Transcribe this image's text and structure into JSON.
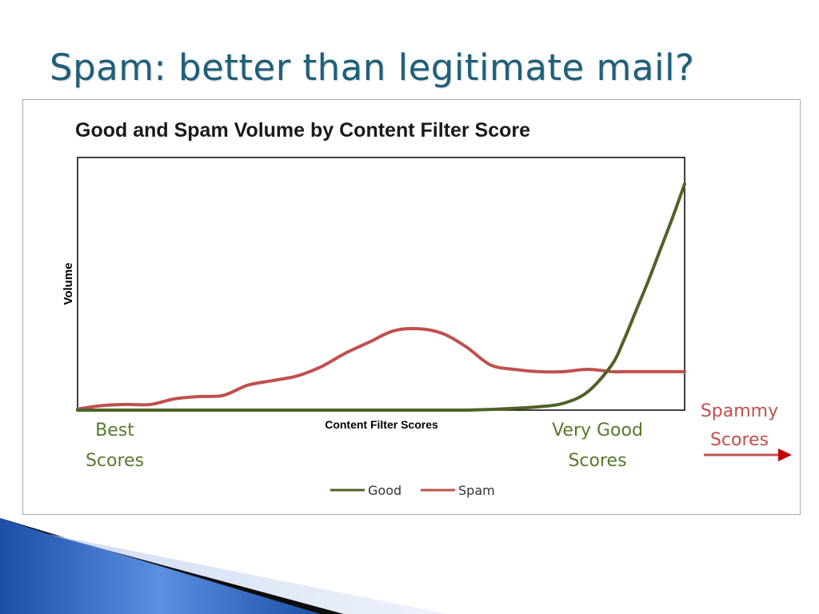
{
  "slide": {
    "title": "Spam: better than legitimate mail?"
  },
  "chart_data": {
    "type": "line",
    "title": "Good and Spam Volume by Content Filter Score",
    "xlabel": "Content Filter Scores",
    "ylabel": "Volume",
    "xlim": [
      0,
      100
    ],
    "ylim": [
      0,
      100
    ],
    "grid": false,
    "legend": "bottom",
    "x": [
      0,
      4,
      8,
      12,
      16,
      20,
      24,
      28,
      32,
      36,
      40,
      44,
      48,
      52,
      56,
      60,
      64,
      68,
      72,
      76,
      80,
      84,
      88,
      90,
      92,
      94,
      96,
      98,
      100
    ],
    "series": [
      {
        "name": "Good",
        "color": "#4f6228",
        "values": [
          0,
          0,
          0,
          0,
          0,
          0,
          0,
          0,
          0,
          0,
          0,
          0,
          0,
          0,
          0,
          0,
          0,
          0.3,
          0.8,
          1.5,
          3,
          8,
          20,
          31,
          44,
          57,
          71,
          85,
          100
        ]
      },
      {
        "name": "Spam",
        "color": "#c0504d",
        "values": [
          0.5,
          2,
          2.5,
          2.5,
          5,
          6,
          6.5,
          11,
          13,
          15,
          19,
          25,
          30,
          35,
          36,
          34,
          28,
          20,
          18,
          17,
          17,
          18,
          17,
          17,
          17,
          17,
          17,
          17,
          17
        ]
      }
    ]
  },
  "annotations": {
    "best_line1": "Best",
    "best_line2": "Scores",
    "very_good_line1": "Very Good",
    "very_good_line2": "Scores",
    "spammy_line1": "Spammy",
    "spammy_line2": "Scores"
  },
  "legend": {
    "good_label": "Good",
    "spam_label": "Spam"
  },
  "colors": {
    "title": "#1f5f7a",
    "good": "#4f6228",
    "spam": "#c0504d",
    "annotation_green": "#577a2c",
    "annotation_red": "#c0504d"
  }
}
